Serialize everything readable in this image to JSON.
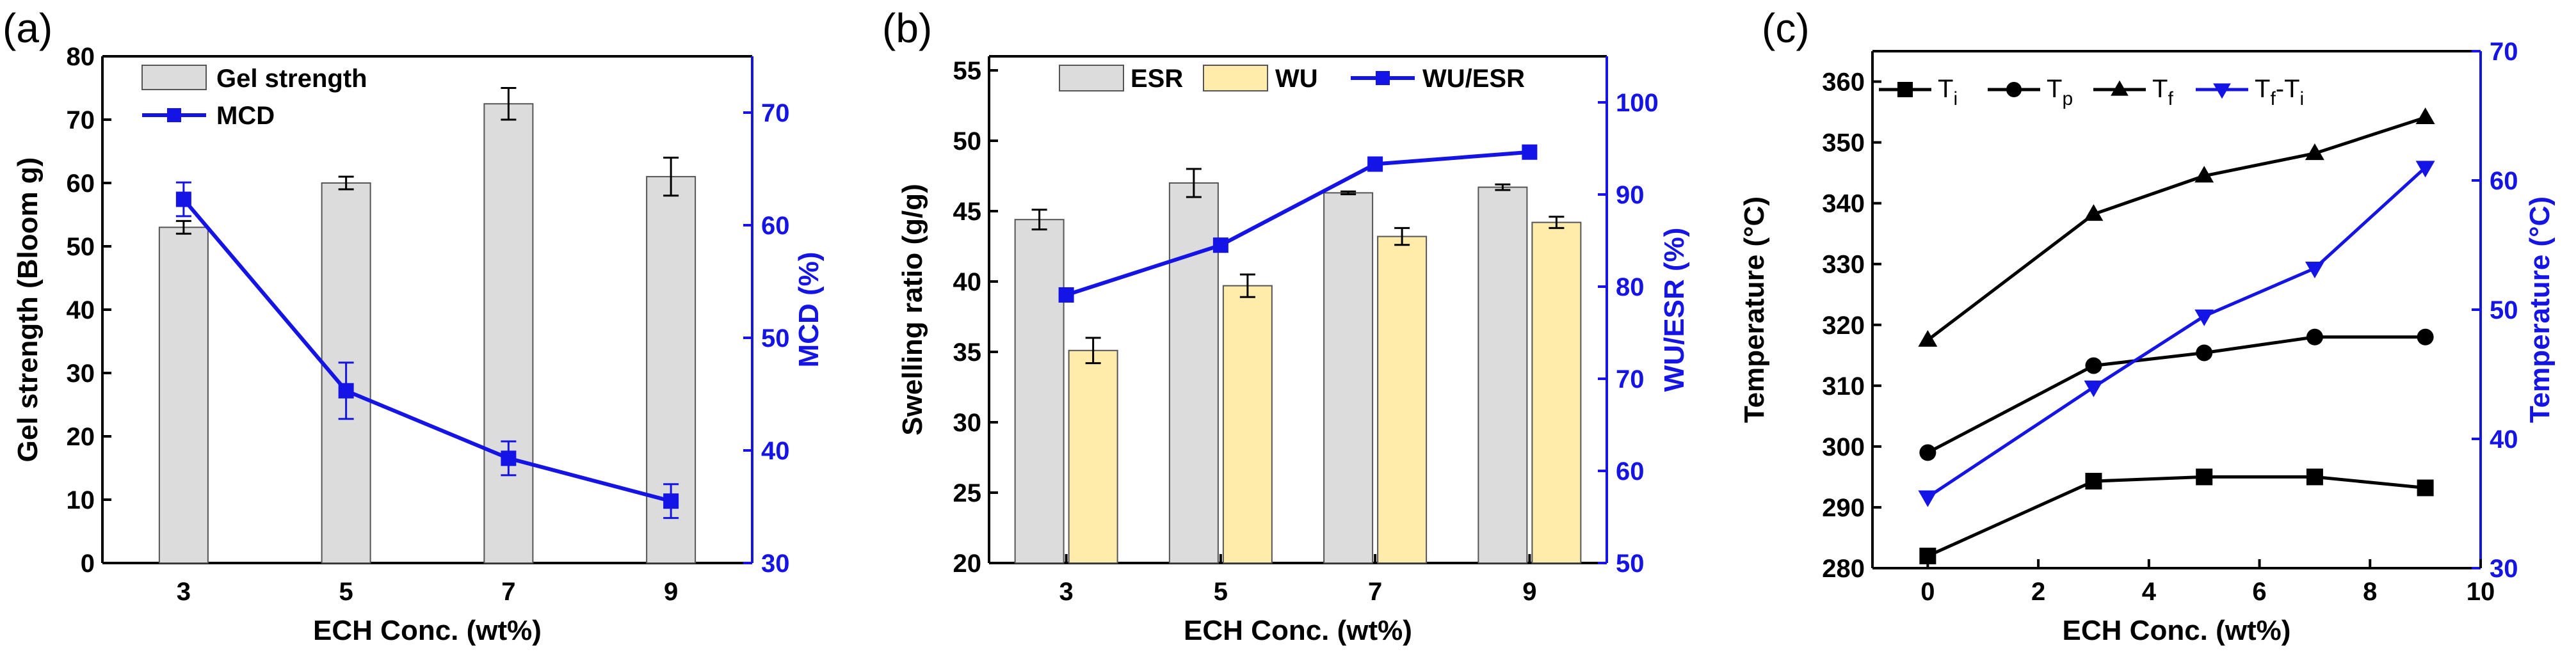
{
  "colors": {
    "axis": "#000000",
    "blue": "#1414E6",
    "bar_gray": "#DCDCDC",
    "bar_yellow": "#FFEBAA"
  },
  "chart_data": [
    {
      "panel": "(a)",
      "type": "bar+line",
      "xlabel": "ECH Conc. (wt%)",
      "ylabel": "Gel strength (Bloom g)",
      "y2label": "MCD (%)",
      "categories": [
        "3",
        "5",
        "7",
        "9"
      ],
      "ylim": [
        0,
        80
      ],
      "yticks": [
        0,
        10,
        20,
        30,
        40,
        50,
        60,
        70,
        80
      ],
      "y2lim": [
        30,
        75
      ],
      "y2ticks": [
        30,
        40,
        50,
        60,
        70
      ],
      "legend_position": "top-left",
      "series": [
        {
          "name": "Gel strength",
          "kind": "bar",
          "axis": "left",
          "values": [
            53,
            60,
            72.5,
            61
          ],
          "errors": [
            1,
            1,
            2.5,
            3
          ]
        },
        {
          "name": "MCD",
          "kind": "line",
          "axis": "right",
          "values": [
            62.3,
            45.3,
            39.3,
            35.5
          ],
          "errors": [
            1.5,
            2.5,
            1.5,
            1.5
          ]
        }
      ]
    },
    {
      "panel": "(b)",
      "type": "bar+line",
      "xlabel": "ECH Conc. (wt%)",
      "ylabel": "Swelling ratio (g/g)",
      "y2label": "WU/ESR (%)",
      "categories": [
        "3",
        "5",
        "7",
        "9"
      ],
      "ylim": [
        20,
        56
      ],
      "yticks": [
        20,
        25,
        30,
        35,
        40,
        45,
        50,
        55
      ],
      "y2lim": [
        50,
        105
      ],
      "y2ticks": [
        50,
        60,
        70,
        80,
        90,
        100
      ],
      "legend_position": "top",
      "series": [
        {
          "name": "ESR",
          "kind": "bar",
          "axis": "left",
          "values": [
            44.4,
            47,
            46.3,
            46.7
          ],
          "errors": [
            0.7,
            1,
            0.1,
            0.2
          ]
        },
        {
          "name": "WU",
          "kind": "bar",
          "axis": "left",
          "values": [
            35.1,
            39.7,
            43.2,
            44.2
          ],
          "errors": [
            0.9,
            0.8,
            0.6,
            0.4
          ]
        },
        {
          "name": "WU/ESR",
          "kind": "line",
          "axis": "right",
          "values": [
            79.1,
            84.5,
            93.3,
            94.6
          ]
        }
      ]
    },
    {
      "panel": "(c)",
      "type": "line",
      "xlabel": "ECH Conc. (wt%)",
      "ylabel": "Temperature (°C)",
      "y2label": "Temperature (°C)",
      "xlim": [
        -1,
        10
      ],
      "xticks": [
        0,
        2,
        4,
        6,
        8,
        10
      ],
      "ylim": [
        280,
        365
      ],
      "yticks": [
        280,
        290,
        300,
        310,
        320,
        330,
        340,
        350,
        360
      ],
      "y2lim": [
        30,
        70
      ],
      "y2ticks": [
        30,
        40,
        50,
        60,
        70
      ],
      "legend_position": "top",
      "x": [
        0,
        3,
        5,
        7,
        9
      ],
      "series": [
        {
          "name": "Ti",
          "axis": "left",
          "marker": "square",
          "values": [
            282,
            294.3,
            295,
            295,
            293.2
          ]
        },
        {
          "name": "Tp",
          "axis": "left",
          "marker": "circle",
          "values": [
            299,
            313.3,
            315.4,
            318,
            318
          ]
        },
        {
          "name": "Tf",
          "axis": "left",
          "marker": "triangle-up",
          "values": [
            317.5,
            338.2,
            344.5,
            348.2,
            354.1
          ]
        },
        {
          "name": "Tf-Ti",
          "axis": "right",
          "marker": "triangle-down",
          "values": [
            35.5,
            44,
            49.5,
            53.2,
            61
          ]
        }
      ]
    }
  ]
}
